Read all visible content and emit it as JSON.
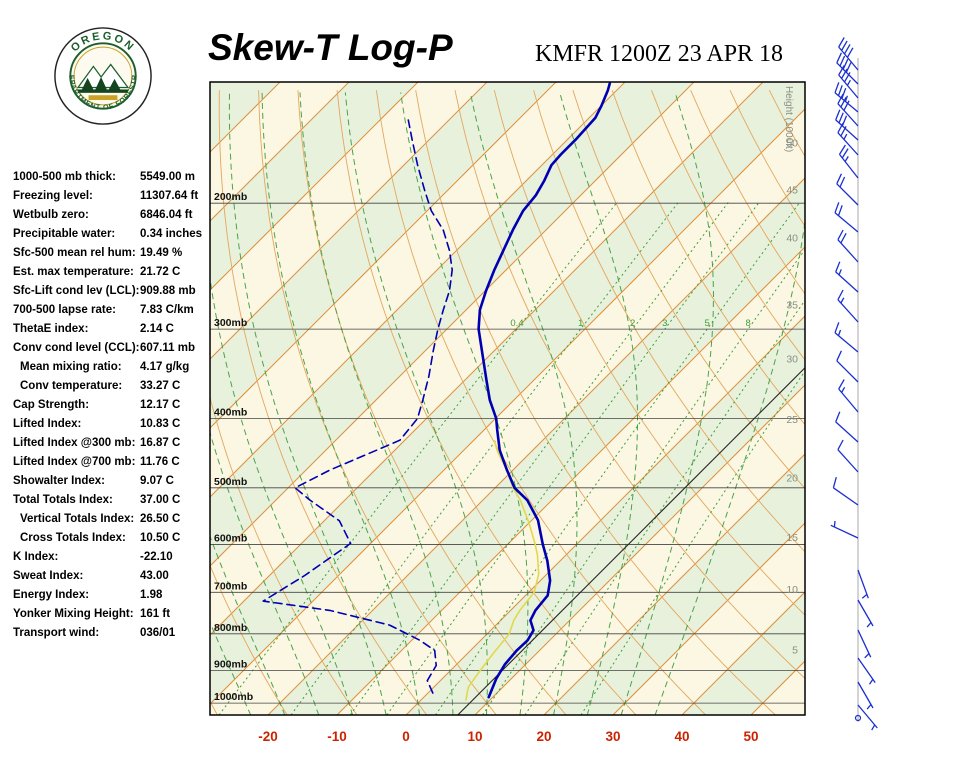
{
  "header": {
    "title": "Skew-T Log-P",
    "station_line": "KMFR 1200Z 23 APR 18"
  },
  "logo": {
    "ring_top": "OREGON",
    "ring_bottom": "DEPARTMENT OF FORESTRY"
  },
  "indices": [
    {
      "label": "1000-500 mb thick:",
      "value": "5549.00 m",
      "indent": false
    },
    {
      "label": "Freezing level:",
      "value": "11307.64 ft",
      "indent": false
    },
    {
      "label": "Wetbulb zero:",
      "value": "6846.04 ft",
      "indent": false
    },
    {
      "label": "Precipitable water:",
      "value": "0.34 inches",
      "indent": false
    },
    {
      "label": "Sfc-500 mean rel hum:",
      "value": "19.49 %",
      "indent": false
    },
    {
      "label": "Est. max temperature:",
      "value": "21.72 C",
      "indent": false
    },
    {
      "label": "Sfc-Lift cond lev (LCL):",
      "value": "909.88 mb",
      "indent": false
    },
    {
      "label": "700-500 lapse rate:",
      "value": "7.83 C/km",
      "indent": false
    },
    {
      "label": "ThetaE index:",
      "value": "2.14 C",
      "indent": false
    },
    {
      "label": "Conv cond level (CCL):",
      "value": "607.11 mb",
      "indent": false
    },
    {
      "label": "Mean mixing ratio:",
      "value": "4.17 g/kg",
      "indent": true
    },
    {
      "label": "Conv temperature:",
      "value": "33.27 C",
      "indent": true
    },
    {
      "label": "Cap Strength:",
      "value": "12.17 C",
      "indent": false
    },
    {
      "label": "Lifted Index:",
      "value": "10.83 C",
      "indent": false
    },
    {
      "label": "Lifted Index @300 mb:",
      "value": "16.87 C",
      "indent": false
    },
    {
      "label": "Lifted Index @700 mb:",
      "value": "11.76 C",
      "indent": false
    },
    {
      "label": "Showalter Index:",
      "value": "9.07 C",
      "indent": false
    },
    {
      "label": "Total Totals Index:",
      "value": "37.00 C",
      "indent": false
    },
    {
      "label": "Vertical Totals Index:",
      "value": "26.50 C",
      "indent": true
    },
    {
      "label": "Cross Totals Index:",
      "value": "10.50 C",
      "indent": true
    },
    {
      "label": "K Index:",
      "value": "-22.10",
      "indent": false
    },
    {
      "label": "Sweat Index:",
      "value": "43.00",
      "indent": false
    },
    {
      "label": "Energy Index:",
      "value": "1.98",
      "indent": false
    },
    {
      "label": "Yonker Mixing Height:",
      "value": "161 ft",
      "indent": false
    },
    {
      "label": "Transport wind:",
      "value": "036/01",
      "indent": false
    }
  ],
  "chart_data": {
    "type": "line",
    "subtype": "skew-t-log-p",
    "title": "Skew-T Log-P",
    "station": "KMFR",
    "valid_time": "1200Z 23 APR 18",
    "x_axis": {
      "ticks_C": [
        -20,
        -10,
        0,
        10,
        20,
        30,
        40,
        50
      ]
    },
    "pressure_axis": {
      "labels": [
        "200mb",
        "300mb",
        "400mb",
        "500mb",
        "600mb",
        "700mb",
        "800mb",
        "900mb",
        "1000mb"
      ],
      "levels_mb": [
        200,
        300,
        400,
        500,
        600,
        700,
        800,
        900,
        1000
      ],
      "p_top_mb": 135.4,
      "p_bottom_mb": 1039
    },
    "height_axis": {
      "label": "Height (1000ft)",
      "ticks": [
        {
          "kft": 50,
          "p_mb": 165
        },
        {
          "kft": 45,
          "p_mb": 192
        },
        {
          "kft": 40,
          "p_mb": 224
        },
        {
          "kft": 35,
          "p_mb": 278
        },
        {
          "kft": 30,
          "p_mb": 331
        },
        {
          "kft": 25,
          "p_mb": 402
        },
        {
          "kft": 20,
          "p_mb": 485
        },
        {
          "kft": 15,
          "p_mb": 588
        },
        {
          "kft": 10,
          "p_mb": 695
        },
        {
          "kft": 5,
          "p_mb": 844
        }
      ]
    },
    "isotherms_C": {
      "min": -120,
      "max": 60,
      "step": 10
    },
    "dry_adiabats_C": {
      "min": -40,
      "max": 160,
      "step": 10
    },
    "moist_adiabats_C": [
      -25,
      -20,
      -15,
      -10,
      -5,
      0,
      5,
      10,
      15,
      20,
      25,
      30,
      35
    ],
    "mixing_ratio_g_kg": [
      0.4,
      1,
      2,
      3,
      5,
      8,
      12,
      20
    ],
    "mixing_ratio_labeled": [
      0.4,
      1,
      2,
      3,
      5,
      8
    ],
    "reference_isotherm_C": 7.5,
    "series": [
      {
        "name": "temperature",
        "style": "solid",
        "color": "#0000b2",
        "points_p_T": [
          [
            981,
            9.4
          ],
          [
            924,
            7.8
          ],
          [
            883,
            7.0
          ],
          [
            844,
            6.7
          ],
          [
            817,
            6.8
          ],
          [
            791,
            6.2
          ],
          [
            766,
            4.3
          ],
          [
            742,
            3.6
          ],
          [
            707,
            3.2
          ],
          [
            674,
            1.4
          ],
          [
            632,
            -1.9
          ],
          [
            600,
            -4.9
          ],
          [
            555,
            -9.1
          ],
          [
            520,
            -13.6
          ],
          [
            500,
            -17.2
          ],
          [
            472,
            -20.9
          ],
          [
            443,
            -24.8
          ],
          [
            415,
            -28.1
          ],
          [
            400,
            -29.9
          ],
          [
            377,
            -33.5
          ],
          [
            354,
            -36.8
          ],
          [
            331,
            -40.3
          ],
          [
            300,
            -45.4
          ],
          [
            282,
            -48.0
          ],
          [
            265,
            -49.9
          ],
          [
            248,
            -51.7
          ],
          [
            233,
            -53.2
          ],
          [
            218,
            -54.8
          ],
          [
            205,
            -56.1
          ],
          [
            195,
            -56.5
          ],
          [
            186,
            -57.4
          ],
          [
            177,
            -58.6
          ],
          [
            171,
            -58.8
          ],
          [
            163,
            -58.8
          ],
          [
            152,
            -59.1
          ],
          [
            146,
            -60.0
          ],
          [
            139,
            -61.3
          ],
          [
            136,
            -62.0
          ]
        ]
      },
      {
        "name": "dewpoint",
        "style": "dashed",
        "color": "#0000b2",
        "points_p_T": [
          [
            968,
            0.7
          ],
          [
            930,
            -1.9
          ],
          [
            886,
            -2.8
          ],
          [
            844,
            -5.2
          ],
          [
            817,
            -8.8
          ],
          [
            778,
            -15.4
          ],
          [
            742,
            -26.2
          ],
          [
            720,
            -37.2
          ],
          [
            663,
            -34.9
          ],
          [
            598,
            -32.9
          ],
          [
            556,
            -37.8
          ],
          [
            520,
            -45.1
          ],
          [
            500,
            -49.0
          ],
          [
            472,
            -46.5
          ],
          [
            450,
            -43.6
          ],
          [
            429,
            -40.7
          ],
          [
            400,
            -41.3
          ],
          [
            377,
            -43.2
          ],
          [
            349,
            -45.8
          ],
          [
            322,
            -48.8
          ],
          [
            300,
            -51.3
          ],
          [
            282,
            -53.3
          ],
          [
            265,
            -55.2
          ],
          [
            248,
            -57.8
          ],
          [
            233,
            -61.0
          ],
          [
            218,
            -64.9
          ],
          [
            205,
            -69.4
          ],
          [
            192,
            -73.3
          ],
          [
            177,
            -78.0
          ],
          [
            163,
            -82.5
          ],
          [
            153,
            -85.9
          ]
        ]
      },
      {
        "name": "wetbulb",
        "style": "solid",
        "color": "#e2d84e",
        "points_p_T": [
          [
            990,
            6.5
          ],
          [
            950,
            5.0
          ],
          [
            900,
            4.3
          ],
          [
            850,
            3.7
          ],
          [
            800,
            3.2
          ],
          [
            766,
            1.9
          ],
          [
            740,
            1.3
          ],
          [
            700,
            0.8
          ],
          [
            660,
            -1.2
          ],
          [
            620,
            -4.2
          ],
          [
            600,
            -6.0
          ],
          [
            560,
            -10.0
          ],
          [
            520,
            -14.6
          ],
          [
            500,
            -17.4
          ],
          [
            470,
            -21.2
          ],
          [
            445,
            -24.9
          ],
          [
            430,
            -26.9
          ]
        ]
      }
    ],
    "wind_barbs": {
      "color": "#1b2fd0",
      "list_y_dir_kt": [
        [
          70,
          320,
          40
        ],
        [
          84,
          315,
          40
        ],
        [
          98,
          320,
          35
        ],
        [
          112,
          310,
          35
        ],
        [
          126,
          318,
          30
        ],
        [
          140,
          312,
          30
        ],
        [
          155,
          318,
          25
        ],
        [
          178,
          322,
          25
        ],
        [
          205,
          315,
          20
        ],
        [
          232,
          310,
          20
        ],
        [
          262,
          318,
          20
        ],
        [
          292,
          312,
          15
        ],
        [
          322,
          318,
          15
        ],
        [
          352,
          310,
          15
        ],
        [
          382,
          315,
          10
        ],
        [
          412,
          320,
          15
        ],
        [
          442,
          312,
          10
        ],
        [
          472,
          318,
          10
        ],
        [
          505,
          305,
          10
        ],
        [
          538,
          295,
          5
        ],
        [
          570,
          160,
          5
        ],
        [
          600,
          150,
          5
        ],
        [
          630,
          155,
          5
        ],
        [
          658,
          145,
          5
        ],
        [
          682,
          150,
          3
        ],
        [
          705,
          140,
          3
        ],
        [
          718,
          36,
          2
        ]
      ]
    },
    "colors": {
      "band_cream": "#fbf7e3",
      "band_green": "#e8f1dc",
      "isotherm": "#dd8f3e",
      "dry_adiabat": "#e3a75c",
      "moist_adiabat": "#4aa34a",
      "mixing_ratio": "#3f9f3f",
      "pressure_line": "#444444",
      "frame": "#000000",
      "axis_red": "#cc2200",
      "height_text": "#8a8f84",
      "pressure_text": "#111111"
    }
  }
}
